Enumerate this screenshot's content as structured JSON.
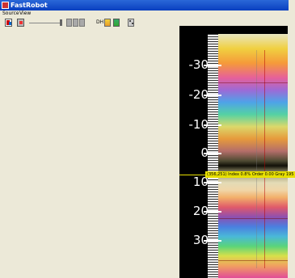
{
  "window": {
    "title": "FastRobot",
    "accent": "#0a3fbf"
  },
  "menu": {
    "items": [
      "Source",
      "View"
    ]
  },
  "toolbar": {
    "icons": [
      "paint-icon",
      "image-icon",
      "slider",
      "frame-icon",
      "dh-icon",
      "chart-icon",
      "grid-icon"
    ],
    "dh_label": "DH"
  },
  "viewer": {
    "labels": [
      "-30",
      "-20",
      "-10",
      "0",
      "10",
      "20",
      "30"
    ],
    "readout": "(356,251) Index 0.8% Order 0.00 Gray 195"
  }
}
